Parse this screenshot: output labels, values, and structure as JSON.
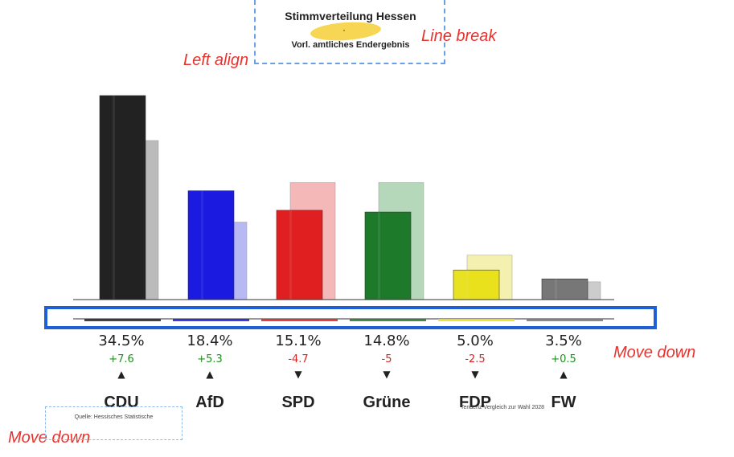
{
  "header": {
    "title": "Stimmverteilung Hessen",
    "title_dot": "·",
    "subtitle": "Vorl. amtliches Endergebnis"
  },
  "annotations": {
    "left_align": "Left align",
    "line_break": "Line break",
    "move_down_right": "Move down",
    "move_down_left": "Move down"
  },
  "footer": {
    "source": "Quelle: Hessisches Statistische",
    "tendency": "Tendenz Vergleich zur Wahl 2028"
  },
  "chart_data": {
    "type": "bar",
    "categories": [
      "CDU",
      "AfD",
      "SPD",
      "Grüne",
      "FDP",
      "FW"
    ],
    "series": [
      {
        "values": [
          34.5,
          18.4,
          15.1,
          14.8,
          5.0,
          3.5
        ]
      },
      {
        "values": [
          26.9,
          13.1,
          19.8,
          19.8,
          7.5,
          3.0
        ]
      }
    ],
    "labels": [
      "34.5%",
      "18.4%",
      "15.1%",
      "14.8%",
      "5.0%",
      "3.5%"
    ],
    "changes": [
      "+7.6",
      "+5.3",
      "-4.7",
      "-5",
      "-2.5",
      "+0.5"
    ],
    "arrows": [
      "▲",
      "▲",
      "▼",
      "▼",
      "▼",
      "▲"
    ],
    "colors": [
      "#222222",
      "#1a1ae0",
      "#e02020",
      "#1d7a2a",
      "#e8e010",
      "#777777"
    ],
    "prev_colors": [
      "#bbbbbb",
      "#b8b8f4",
      "#f5b8b8",
      "#b6d8ba",
      "#f4f0b0",
      "#cccccc"
    ],
    "positive_color": "#1f8f1f",
    "negative_color": "#e02020",
    "ylim": [
      0,
      36
    ]
  }
}
